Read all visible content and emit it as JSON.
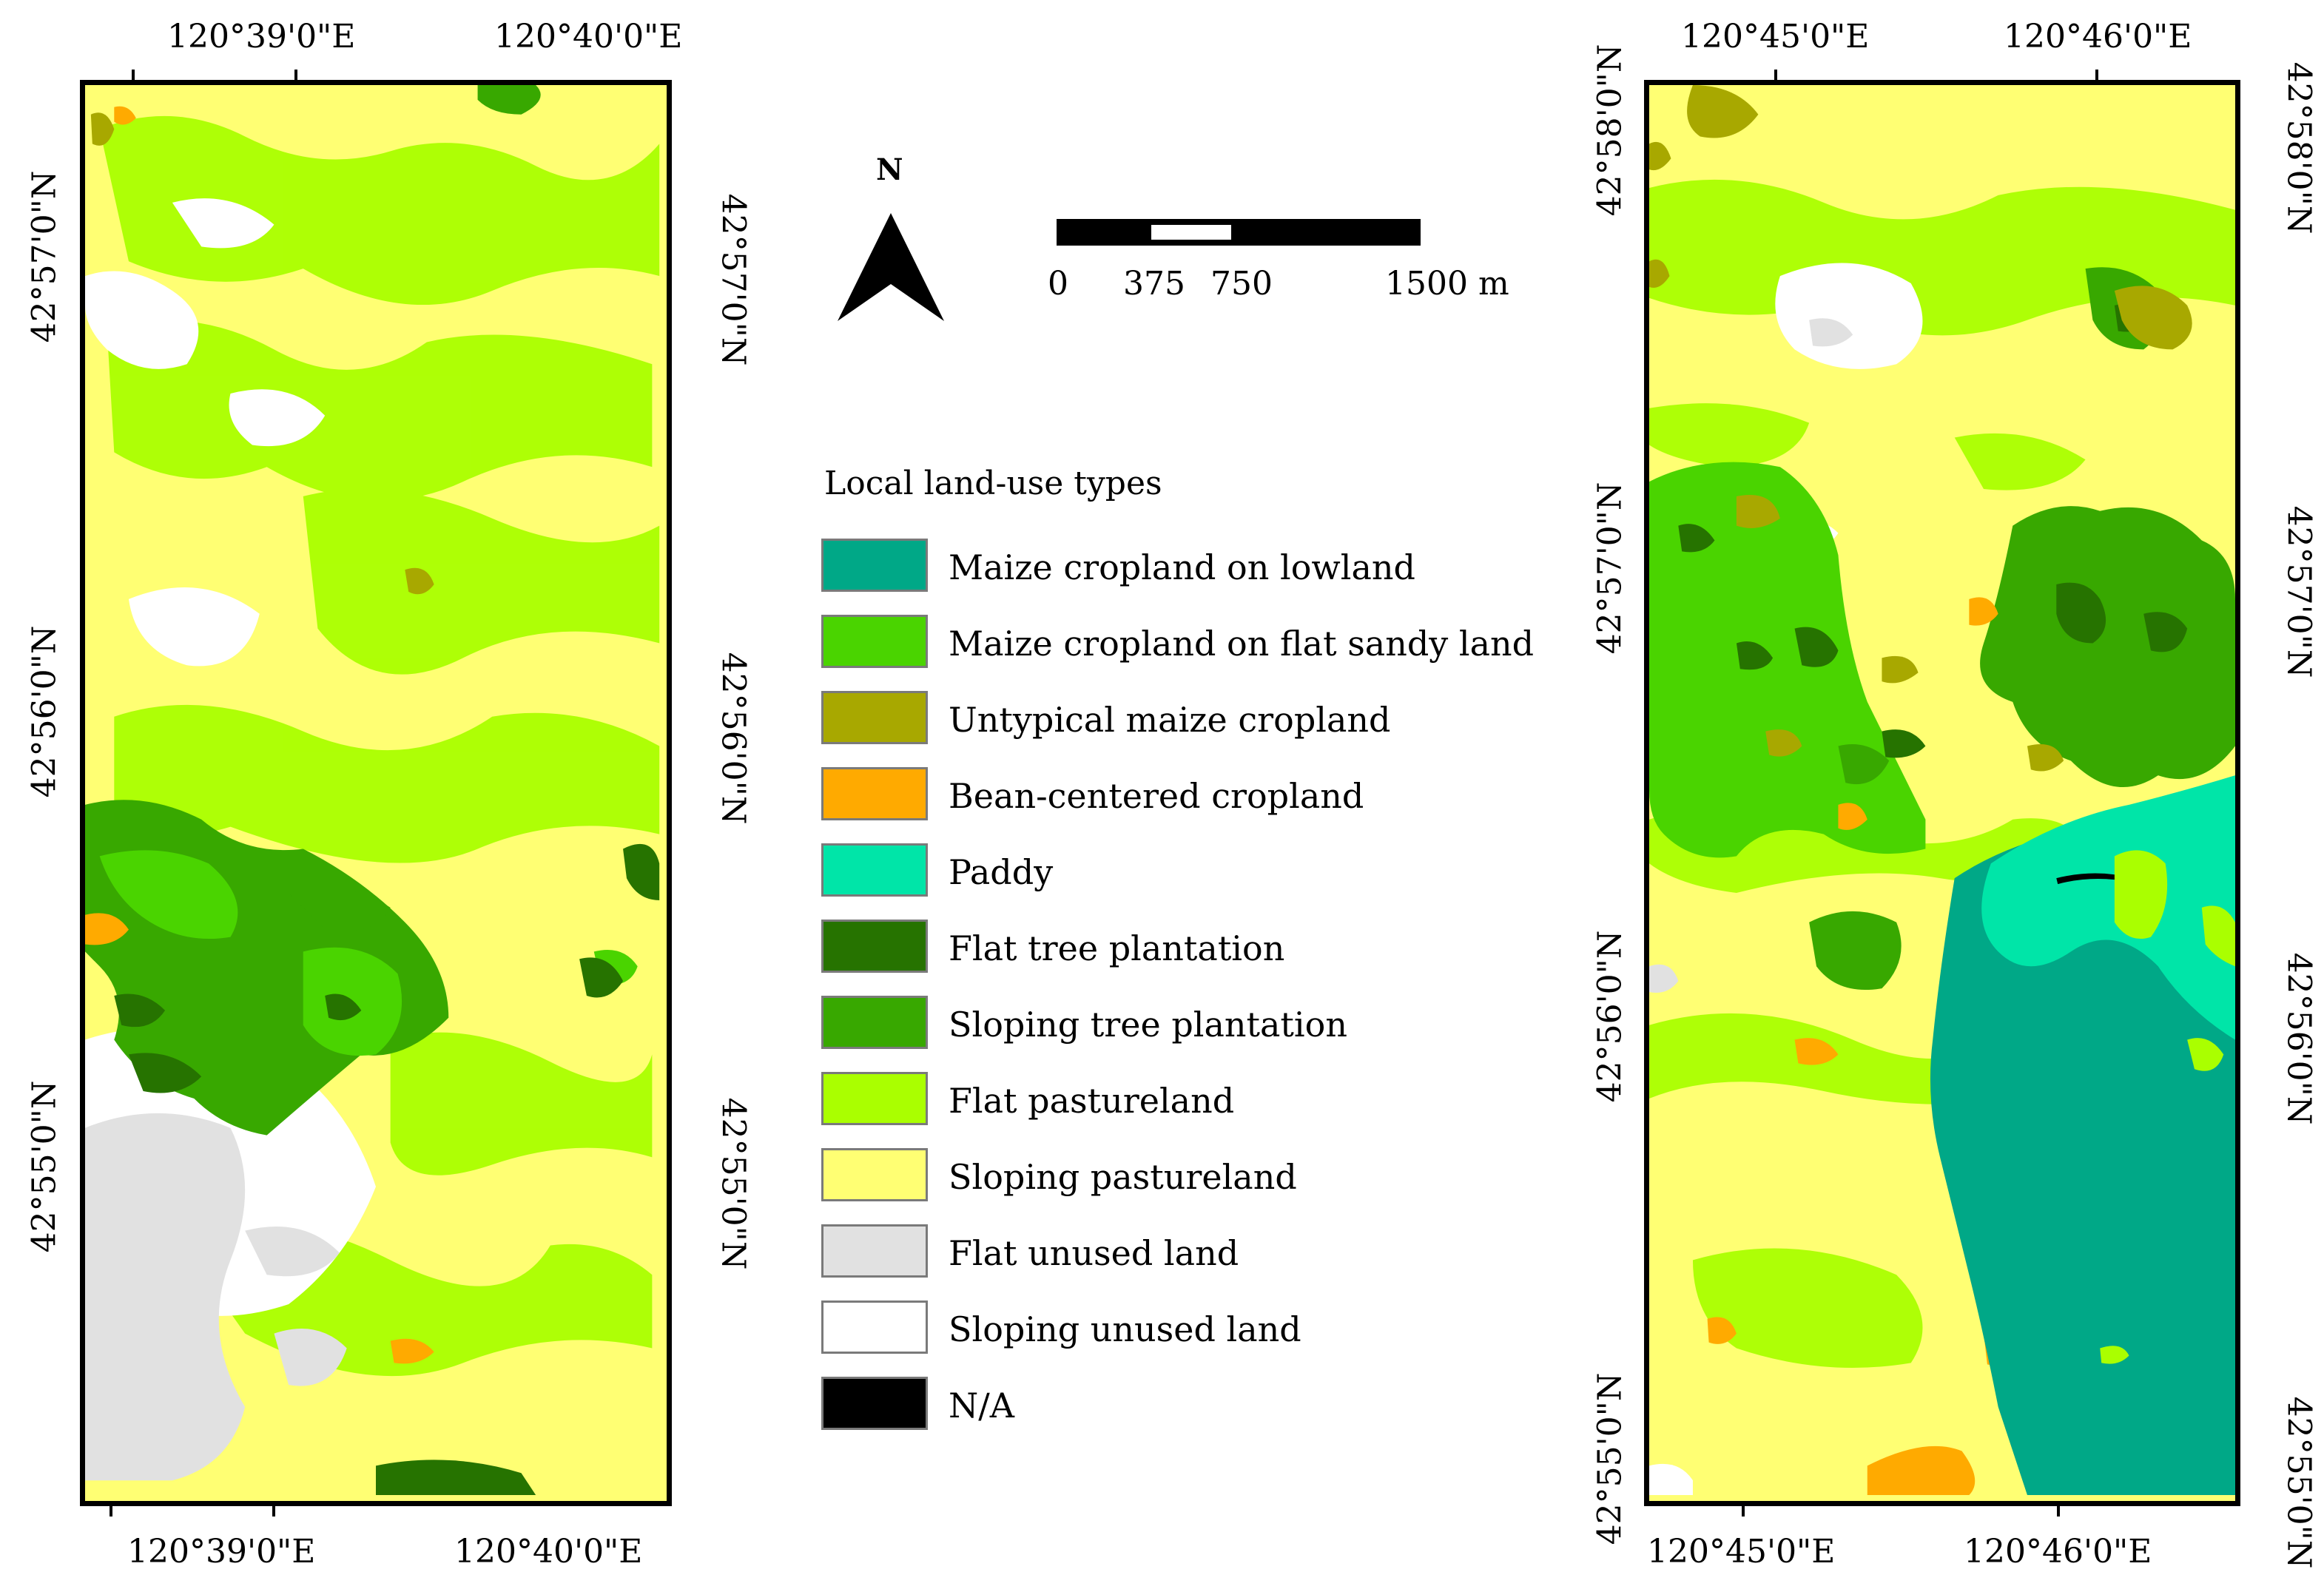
{
  "left_map": {
    "top_lon_labels": [
      "120°39'0\"E",
      "120°40'0\"E"
    ],
    "bottom_lon_labels": [
      "120°39'0\"E",
      "120°40'0\"E"
    ],
    "left_lat_labels": [
      "42°57'0\"N",
      "42°56'0\"N",
      "42°55'0\"N"
    ],
    "right_lat_labels": [
      "42°57'0\"N",
      "42°56'0\"N",
      "42°55'0\"N"
    ]
  },
  "right_map": {
    "top_lon_labels": [
      "120°45'0\"E",
      "120°46'0\"E"
    ],
    "bottom_lon_labels": [
      "120°45'0\"E",
      "120°46'0\"E"
    ],
    "left_lat_labels": [
      "42°58'0\"N",
      "42°57'0\"N",
      "42°56'0\"N",
      "42°55'0\"N"
    ],
    "right_lat_labels": [
      "42°58'0\"N",
      "42°57'0\"N",
      "42°56'0\"N",
      "42°55'0\"N"
    ]
  },
  "north_arrow": {
    "label": "N"
  },
  "scale_bar": {
    "ticks": [
      "0",
      "375",
      "750",
      "1500 m"
    ]
  },
  "legend": {
    "title": "Local land-use types",
    "items": [
      {
        "label": "Maize cropland on lowland",
        "color": "#00a887"
      },
      {
        "label": "Maize cropland on flat sandy land",
        "color": "#4ad400"
      },
      {
        "label": "Untypical maize cropland",
        "color": "#a8a800"
      },
      {
        "label": "Bean-centered cropland",
        "color": "#ffaa00"
      },
      {
        "label": "Paddy",
        "color": "#00e5a8"
      },
      {
        "label": "Flat tree plantation",
        "color": "#267300"
      },
      {
        "label": "Sloping tree plantation",
        "color": "#38a800"
      },
      {
        "label": "Flat pastureland",
        "color": "#aaff00"
      },
      {
        "label": "Sloping pastureland",
        "color": "#ffff73"
      },
      {
        "label": "Flat unused land",
        "color": "#e1e1e1"
      },
      {
        "label": "Sloping unused land",
        "color": "#ffffff"
      },
      {
        "label": "N/A",
        "color": "#000000"
      }
    ]
  }
}
